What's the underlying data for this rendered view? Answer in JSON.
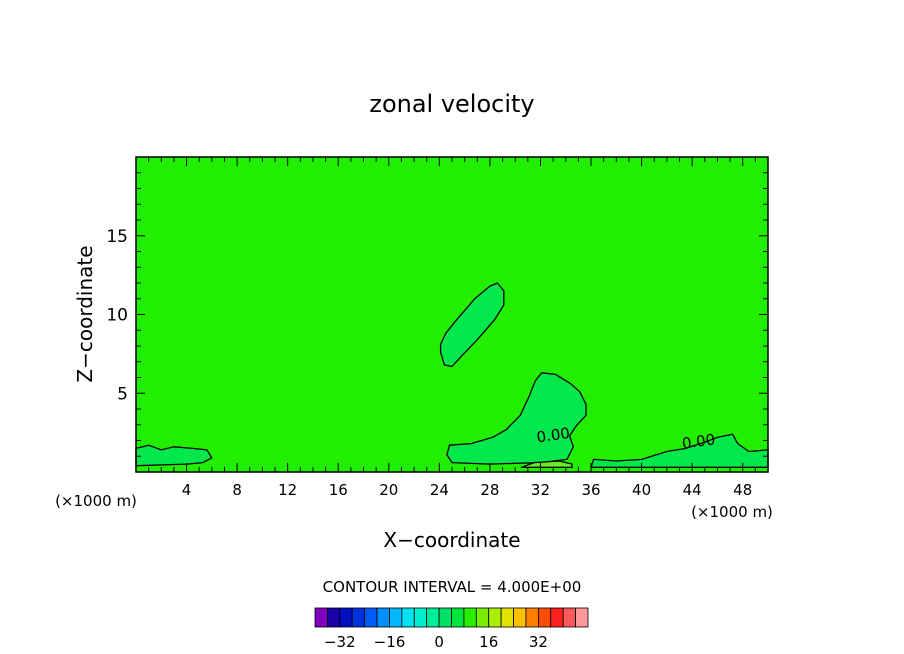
{
  "chart_data": {
    "type": "contour",
    "title": "zonal velocity",
    "xlabel": "X−coordinate",
    "ylabel": "Z−coordinate",
    "x_unit_label": "(×1000 m)",
    "y_unit_label": "(×1000 m)",
    "xlim": [
      0,
      50
    ],
    "ylim": [
      0,
      20
    ],
    "x_ticks": [
      4,
      8,
      12,
      16,
      20,
      24,
      28,
      32,
      36,
      40,
      44,
      48
    ],
    "y_ticks": [
      5,
      10,
      15
    ],
    "contour_interval_text": "CONTOUR INTERVAL =  4.000E+00",
    "contour_labels": [
      {
        "text": "0.00",
        "x": 33.0,
        "z": 2.4
      },
      {
        "text": "0.00",
        "x": 44.5,
        "z": 2.0
      }
    ],
    "background_level_color": "#22ee00",
    "colorbar": {
      "colors": [
        "#7f00bf",
        "#1c00a8",
        "#0010c0",
        "#0033dd",
        "#005ef5",
        "#0090ff",
        "#00b8ff",
        "#00e2f0",
        "#00eecc",
        "#00ee99",
        "#00e066",
        "#00e63c",
        "#2aee00",
        "#77ee00",
        "#aaee00",
        "#e2e200",
        "#ffc000",
        "#ff8000",
        "#ff4c00",
        "#ff2020",
        "#ff5a5a",
        "#ff9898"
      ],
      "tick_labels": [
        "−32",
        "−16",
        "0",
        "16",
        "32"
      ],
      "tick_values": [
        -32,
        -16,
        0,
        16,
        32
      ]
    },
    "regions": [
      {
        "name": "upper-blob",
        "fill": "#00e84a",
        "points": [
          [
            24.1,
            7.6
          ],
          [
            24.4,
            6.8
          ],
          [
            25.0,
            6.7
          ],
          [
            25.8,
            7.4
          ],
          [
            27.0,
            8.4
          ],
          [
            28.4,
            9.7
          ],
          [
            29.1,
            10.6
          ],
          [
            29.1,
            11.5
          ],
          [
            28.6,
            12.0
          ],
          [
            28.0,
            11.8
          ],
          [
            26.8,
            11.0
          ],
          [
            25.4,
            9.7
          ],
          [
            24.5,
            8.8
          ],
          [
            24.1,
            8.1
          ]
        ]
      },
      {
        "name": "central-plume",
        "fill": "#00e84a",
        "points": [
          [
            24.8,
            1.7
          ],
          [
            26.5,
            1.8
          ],
          [
            28.2,
            2.2
          ],
          [
            29.3,
            2.7
          ],
          [
            30.4,
            3.6
          ],
          [
            31.1,
            4.8
          ],
          [
            31.6,
            5.8
          ],
          [
            32.1,
            6.3
          ],
          [
            33.2,
            6.2
          ],
          [
            34.4,
            5.6
          ],
          [
            35.1,
            5.1
          ],
          [
            35.6,
            4.3
          ],
          [
            35.6,
            3.6
          ],
          [
            34.9,
            3.0
          ],
          [
            34.3,
            2.3
          ],
          [
            34.6,
            1.6
          ],
          [
            34.1,
            0.8
          ],
          [
            32.0,
            0.6
          ],
          [
            28.0,
            0.5
          ],
          [
            25.0,
            0.6
          ],
          [
            24.6,
            1.1
          ]
        ]
      },
      {
        "name": "left-surface-band",
        "fill": "#00e84a",
        "points": [
          [
            0,
            0.4
          ],
          [
            0,
            1.5
          ],
          [
            1.0,
            1.7
          ],
          [
            2.0,
            1.4
          ],
          [
            3.0,
            1.6
          ],
          [
            4.5,
            1.5
          ],
          [
            5.6,
            1.4
          ],
          [
            6.0,
            0.9
          ],
          [
            5.3,
            0.6
          ],
          [
            4.0,
            0.5
          ],
          [
            0,
            0.4
          ]
        ]
      },
      {
        "name": "right-surface-band",
        "fill": "#00e84a",
        "points": [
          [
            36.0,
            0.3
          ],
          [
            36.2,
            0.8
          ],
          [
            38.0,
            0.7
          ],
          [
            40.0,
            0.8
          ],
          [
            42.0,
            1.3
          ],
          [
            43.5,
            1.5
          ],
          [
            45.0,
            1.9
          ],
          [
            46.0,
            2.2
          ],
          [
            47.2,
            2.4
          ],
          [
            47.6,
            1.8
          ],
          [
            48.5,
            1.3
          ],
          [
            50,
            1.4
          ],
          [
            50,
            0.3
          ]
        ]
      },
      {
        "name": "lower-ridge",
        "fill": "#66ee22",
        "points": [
          [
            30.5,
            0.3
          ],
          [
            31.5,
            0.6
          ],
          [
            33.5,
            0.7
          ],
          [
            34.5,
            0.5
          ],
          [
            34.5,
            0.3
          ]
        ]
      }
    ]
  }
}
